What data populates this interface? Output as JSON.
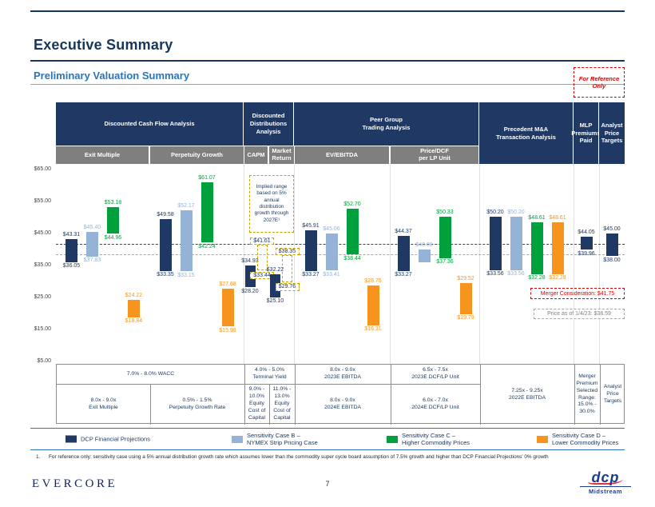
{
  "page": {
    "title": "Executive Summary",
    "subtitle": "Preliminary Valuation Summary",
    "reference_badge": "For Reference Only",
    "page_number": "7"
  },
  "header_table": {
    "groups": {
      "dcf": "Discounted Cash Flow Analysis",
      "dd": "Discounted\nDistributions\nAnalysis",
      "peer": "Peer Group\nTrading Analysis",
      "ma": "Precedent M&A\nTransaction Analysis",
      "mlp": "MLP\nPremiums\nPaid",
      "apt": "Analyst\nPrice\nTargets"
    },
    "subheaders": {
      "exit": "Exit Multiple",
      "perp": "Perpetuity Growth",
      "capm": "CAPM",
      "mr": "Market\nReturn",
      "ev": "EV/EBITDA",
      "pd": "Price/DCF\nper LP Unit"
    }
  },
  "chart_data": {
    "type": "floating-bar",
    "title": "Preliminary Valuation Summary",
    "ylim": [
      5,
      65
    ],
    "y_ticks": [
      {
        "label": "$65.00",
        "value": 65
      },
      {
        "label": "$55.00",
        "value": 55
      },
      {
        "label": "$45.00",
        "value": 45
      },
      {
        "label": "$35.00",
        "value": 35
      },
      {
        "label": "$25.00",
        "value": 25
      },
      {
        "label": "$15.00",
        "value": 15
      },
      {
        "label": "$5.00",
        "value": 5
      }
    ],
    "series": {
      "dcp": {
        "name": "DCP Financial Projections",
        "color": "#1F3864"
      },
      "case_b": {
        "name": "Sensitivity Case B – NYMEX Strip Pricing Case",
        "color": "#95B3D7"
      },
      "case_c": {
        "name": "Sensitivity Case C – Higher Commodity Prices",
        "color": "#00A03C"
      },
      "case_d": {
        "name": "Sensitivity Case D – Lower Commodity Prices",
        "color": "#F7941E"
      },
      "implied": {
        "name": "Implied range based on 5% annual distribution growth",
        "color": "#C8A400",
        "dashed": true
      }
    },
    "annotation": "Implied range based on 5% annual distribution growth through 2027E¹",
    "reference_lines": [
      {
        "label": "Merger Consideration: $41.75",
        "value": 41.75,
        "color": "#E00000"
      },
      {
        "label": "Price as of 1/4/23: $38.59",
        "value": 38.59,
        "color": "#A6A6A6"
      }
    ],
    "groups": [
      {
        "name": "exit_multiple",
        "bars": [
          {
            "series": "dcp",
            "low": 36.05,
            "high": 43.31,
            "low_label": "$36.05",
            "high_label": "$43.31"
          },
          {
            "series": "case_b",
            "low": 37.83,
            "high": 45.4,
            "low_label": "$37.83",
            "high_label": "$45.40"
          },
          {
            "series": "case_c",
            "low": 44.96,
            "high": 53.18,
            "low_label": "$44.96",
            "high_label": "$53.18"
          },
          {
            "series": "case_d",
            "low": 18.84,
            "high": 24.22,
            "low_label": "$18.84",
            "high_label": "$24.22"
          }
        ]
      },
      {
        "name": "perpetuity_growth",
        "bars": [
          {
            "series": "dcp",
            "low": 33.35,
            "high": 49.58,
            "low_label": "$33.35",
            "high_label": "$49.58"
          },
          {
            "series": "case_b",
            "low": 33.15,
            "high": 52.17,
            "low_label": "$33.15",
            "high_label": "$52.17"
          },
          {
            "series": "case_c",
            "low": 42.24,
            "high": 61.07,
            "low_label": "$42.24",
            "high_label": "$61.07"
          },
          {
            "series": "case_d",
            "low": 15.98,
            "high": 27.68,
            "low_label": "$15.98",
            "high_label": "$27.68"
          }
        ]
      },
      {
        "name": "capm",
        "bars": [
          {
            "series": "dcp",
            "low": 28.2,
            "high": 34.93,
            "low_label": "$28.20",
            "high_label": "$34.93"
          },
          {
            "series": "implied",
            "low": 33.44,
            "high": 41.61,
            "low_label": "$33.44",
            "high_label": "$41.61"
          }
        ]
      },
      {
        "name": "market_return",
        "bars": [
          {
            "series": "dcp",
            "low": 25.1,
            "high": 32.22,
            "low_label": "$25.10",
            "high_label": "$32.22"
          },
          {
            "series": "implied",
            "low": 29.76,
            "high": 38.35,
            "low_label": "$29.76",
            "high_label": "$38.35"
          }
        ]
      },
      {
        "name": "ev_ebitda",
        "bars": [
          {
            "series": "dcp",
            "low": 33.27,
            "high": 45.91,
            "low_label": "$33.27",
            "high_label": "$45.91"
          },
          {
            "series": "case_b",
            "low": 33.41,
            "high": 45.06,
            "low_label": "$33.41",
            "high_label": "$45.06"
          },
          {
            "series": "case_c",
            "low": 38.44,
            "high": 52.7,
            "low_label": "$38.44",
            "high_label": "$52.70"
          },
          {
            "series": "case_d",
            "low": 16.31,
            "high": 28.75,
            "low_label": "$16.31",
            "high_label": "$28.75"
          }
        ]
      },
      {
        "name": "price_dcf_lp",
        "bars": [
          {
            "series": "dcp",
            "low": 33.27,
            "high": 44.37,
            "low_label": "$33.27",
            "high_label": "$44.37"
          },
          {
            "series": "case_b",
            "low": 36.1,
            "high": 40.08,
            "low_label": "",
            "high_label": "$40.08"
          },
          {
            "series": "case_c",
            "low": 37.36,
            "high": 50.33,
            "low_label": "$37.36",
            "high_label": "$50.33"
          },
          {
            "series": "case_d",
            "low": 19.79,
            "high": 29.52,
            "low_label": "$19.79",
            "high_label": "$29.52"
          }
        ]
      },
      {
        "name": "precedent_ma",
        "bars": [
          {
            "series": "dcp",
            "low": 33.56,
            "high": 50.2,
            "low_label": "$33.56",
            "high_label": "$50.20"
          },
          {
            "series": "case_b",
            "low": 33.56,
            "high": 50.2,
            "low_label": "$33.56",
            "high_label": "$50.20"
          },
          {
            "series": "case_c",
            "low": 32.28,
            "high": 48.61,
            "low_label": "$32.28",
            "high_label": "$48.61"
          },
          {
            "series": "case_d",
            "low": 32.28,
            "high": 48.61,
            "low_label": "$32.28",
            "high_label": "$48.61"
          }
        ]
      },
      {
        "name": "mlp_premiums",
        "bars": [
          {
            "series": "dcp",
            "low": 39.96,
            "high": 44.05,
            "low_label": "$39.96",
            "high_label": "$44.05"
          }
        ]
      },
      {
        "name": "analyst_targets",
        "bars": [
          {
            "series": "dcp",
            "low": 38.0,
            "high": 45.0,
            "low_label": "$38.00",
            "high_label": "$45.00"
          }
        ]
      }
    ]
  },
  "assumptions": {
    "row1": [
      "7.0% - 8.0% WACC",
      "4.0% - 5.0%\nTerminal Yield",
      "8.0x - 9.0x\n2023E EBITDA",
      "6.5x - 7.5x\n2023E DCF/LP Unit"
    ],
    "row2": [
      "8.0x - 9.0x\nExit Multiple",
      "0.5% - 1.5%\nPerpetuity Growth Rate",
      "9.0% -\n10.0%\nEquity\nCost of\nCapital",
      "11.0% -\n13.0%\nEquity\nCost of\nCapital",
      "8.0x - 9.0x\n2024E EBITDA",
      "6.0x - 7.0x\n2024E DCF/LP Unit"
    ],
    "spans": [
      "7.25x - 9.25x\n2022E EBITDA",
      "Merger\nPremium\nSelected\nRange:\n15.0% -\n30.0%",
      "Analyst\nPrice\nTargets"
    ]
  },
  "legend": [
    {
      "label": "DCP Financial Projections",
      "color": "#1F3864"
    },
    {
      "label": "Sensitivity Case B –\nNYMEX Strip Pricing Case",
      "color": "#95B3D7"
    },
    {
      "label": "Sensitivity Case C –\nHigher Commodity Prices",
      "color": "#00A03C"
    },
    {
      "label": "Sensitivity Case D –\nLower Commodity Prices",
      "color": "#F7941E"
    }
  ],
  "footnote": {
    "marker": "1.",
    "text": "For reference only: sensitivity case using a 5% annual distribution growth rate which assumes lower than the commodity super cycle board assumption of 7.5% growth and higher than DCP Financial Projections' 0% growth"
  },
  "footer": {
    "brand": "EVERCORE",
    "logo_main": "dcp",
    "logo_sub": "Midstream"
  }
}
